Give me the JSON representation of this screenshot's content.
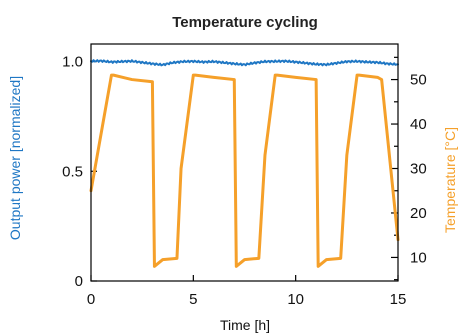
{
  "chart_data": {
    "type": "line",
    "title": "Temperature cycling",
    "xlabel": "Time [h]",
    "ylabel_left": "Output power [normalized]",
    "ylabel_right": "Temperature [°C]",
    "xlim": [
      0,
      15
    ],
    "ylim_left": [
      0,
      1.08
    ],
    "ylim_right": [
      4.7,
      58
    ],
    "x_ticks": [
      0,
      5,
      10,
      15
    ],
    "x_tick_labels": [
      "0",
      "5",
      "10",
      "15"
    ],
    "y_left_ticks": [
      0,
      0.5,
      1.0
    ],
    "y_left_tick_labels": [
      "0",
      "0.5",
      "1.0"
    ],
    "y_right_ticks": [
      10,
      20,
      30,
      40,
      50
    ],
    "y_right_tick_labels": [
      "10",
      "20",
      "30",
      "40",
      "50"
    ],
    "grid": false,
    "colors": {
      "power": "#1f77c4",
      "temperature": "#f5a02a",
      "axis": "#000000"
    },
    "series": [
      {
        "axis": "left",
        "points": [
          [
            0,
            1.002
          ],
          [
            0.5,
            1.003
          ],
          [
            1.0,
            0.998
          ],
          [
            1.5,
            1.0
          ],
          [
            2.0,
            1.002
          ],
          [
            2.5,
            0.996
          ],
          [
            3.0,
            0.99
          ],
          [
            3.5,
            0.985
          ],
          [
            4.0,
            0.995
          ],
          [
            4.5,
            1.0
          ],
          [
            5.0,
            1.001
          ],
          [
            5.5,
            0.998
          ],
          [
            6.0,
            1.0
          ],
          [
            6.5,
            0.995
          ],
          [
            7.0,
            0.99
          ],
          [
            7.5,
            0.986
          ],
          [
            8.0,
            0.994
          ],
          [
            8.5,
            1.0
          ],
          [
            9.0,
            1.001
          ],
          [
            9.5,
            1.002
          ],
          [
            10.0,
            0.998
          ],
          [
            10.5,
            0.993
          ],
          [
            11.0,
            0.988
          ],
          [
            11.5,
            0.986
          ],
          [
            12.0,
            0.993
          ],
          [
            12.5,
            1.0
          ],
          [
            13.0,
            1.001
          ],
          [
            13.5,
            0.998
          ],
          [
            14.0,
            0.996
          ],
          [
            14.5,
            0.99
          ],
          [
            15.0,
            0.987
          ]
        ]
      },
      {
        "axis": "right",
        "points": [
          [
            0,
            25
          ],
          [
            1.0,
            51
          ],
          [
            1.1,
            51
          ],
          [
            2.0,
            50
          ],
          [
            3.0,
            49.5
          ],
          [
            3.1,
            8
          ],
          [
            3.5,
            9.5
          ],
          [
            4.2,
            9.8
          ],
          [
            4.4,
            30
          ],
          [
            5.0,
            51
          ],
          [
            5.1,
            51
          ],
          [
            6.0,
            50.5
          ],
          [
            7.0,
            50
          ],
          [
            7.1,
            8
          ],
          [
            7.5,
            9.5
          ],
          [
            8.2,
            9.8
          ],
          [
            8.5,
            33
          ],
          [
            9.0,
            51
          ],
          [
            9.1,
            51
          ],
          [
            10.0,
            50.5
          ],
          [
            11.0,
            50
          ],
          [
            11.1,
            8
          ],
          [
            11.5,
            9.5
          ],
          [
            12.2,
            9.8
          ],
          [
            12.5,
            33
          ],
          [
            13.0,
            51
          ],
          [
            13.1,
            51
          ],
          [
            14.0,
            50.5
          ],
          [
            14.2,
            50
          ],
          [
            15.0,
            14
          ]
        ]
      }
    ]
  }
}
